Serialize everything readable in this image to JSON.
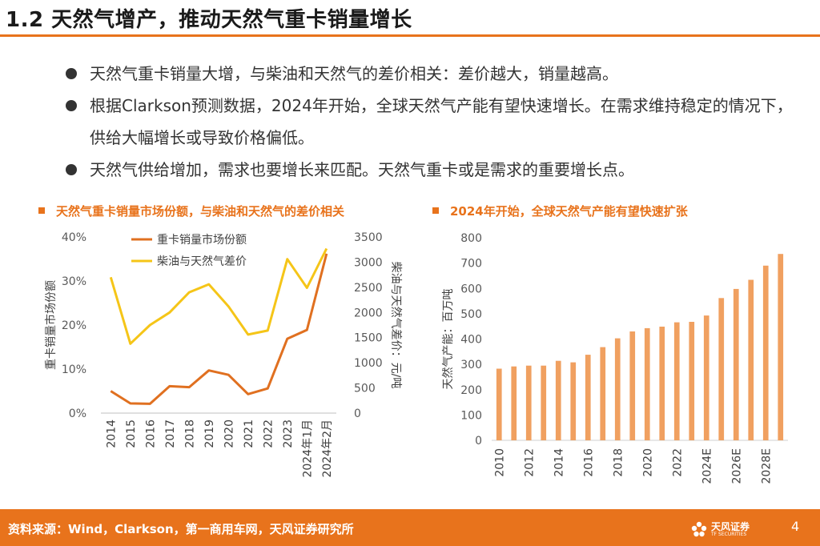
{
  "title": "1.2 天然气增产，推动天然气重卡销量增长",
  "bullets": [
    "天然气重卡销量大增，与柴油和天然气的差价相关：差价越大，销量越高。",
    "根据Clarkson预测数据，2024年开始，全球天然气产能有望快速增长。在需求维持稳定的情况下，供给大幅增长或导致价格偏低。",
    "天然气供给增加，需求也要增长来匹配。天然气重卡或是需求的重要增长点。"
  ],
  "left_chart_title": "天然气重卡销量市场份额，与柴油和天然气的差价相关",
  "right_chart_title": "2024年开始，全球天然气产能有望快速扩张",
  "footer": {
    "source": "资料来源：Wind，Clarkson，第一商用车网，天风证券研究所",
    "logo_cn": "天风证券",
    "logo_en": "TF SECURITIES",
    "page": "4"
  },
  "colors": {
    "accent": "#e8731c",
    "line_share": "#e07020",
    "line_spread": "#f5c518",
    "bar": "#f0a060"
  },
  "chart_data": [
    {
      "type": "line",
      "categories": [
        "2014",
        "2015",
        "2016",
        "2017",
        "2018",
        "2019",
        "2020",
        "2021",
        "2022",
        "2023",
        "2024年1月",
        "2024年2月"
      ],
      "series": [
        {
          "name": "重卡销量市场份额",
          "axis": "left",
          "values": [
            5.0,
            2.2,
            2.1,
            6.1,
            5.9,
            9.7,
            8.7,
            4.3,
            5.6,
            16.9,
            18.9,
            36.2
          ]
        },
        {
          "name": "柴油与天然气差价",
          "axis": "right",
          "values": [
            2700,
            1380,
            1750,
            2000,
            2400,
            2560,
            2120,
            1560,
            1640,
            3060,
            2490,
            3270
          ]
        }
      ],
      "y_left": {
        "label": "重卡销量市场份额",
        "min": 0,
        "max": 40,
        "ticks": [
          "0%",
          "10%",
          "20%",
          "30%",
          "40%"
        ],
        "tick_values": [
          0,
          10,
          20,
          30,
          40
        ]
      },
      "y_right": {
        "label": "柴油与天然气差价：元/吨",
        "min": 0,
        "max": 3500,
        "ticks": [
          "0",
          "500",
          "1000",
          "1500",
          "2000",
          "2500",
          "3000",
          "3500"
        ],
        "tick_values": [
          0,
          500,
          1000,
          1500,
          2000,
          2500,
          3000,
          3500
        ]
      },
      "legend": "top-left"
    },
    {
      "type": "bar",
      "categories": [
        "2010",
        "2011",
        "2012",
        "2013",
        "2014",
        "2015",
        "2016",
        "2017",
        "2018",
        "2019",
        "2020",
        "2021",
        "2022",
        "2023",
        "2024E",
        "2025E",
        "2026E",
        "2027E",
        "2028E",
        "2029E"
      ],
      "x_tick_labels": [
        "2010",
        "",
        "2012",
        "",
        "2014",
        "",
        "2016",
        "",
        "2018",
        "",
        "2020",
        "",
        "2022",
        "",
        "2024E",
        "",
        "2026E",
        "",
        "2028E",
        ""
      ],
      "values": [
        283,
        292,
        295,
        295,
        314,
        308,
        338,
        368,
        403,
        430,
        443,
        449,
        466,
        468,
        493,
        562,
        598,
        634,
        690,
        736
      ],
      "ylabel": "天然气产能：百万吨",
      "ylim": [
        0,
        800
      ],
      "y_ticks": [
        "0",
        "100",
        "200",
        "300",
        "400",
        "500",
        "600",
        "700",
        "800"
      ],
      "y_tick_values": [
        0,
        100,
        200,
        300,
        400,
        500,
        600,
        700,
        800
      ]
    }
  ]
}
